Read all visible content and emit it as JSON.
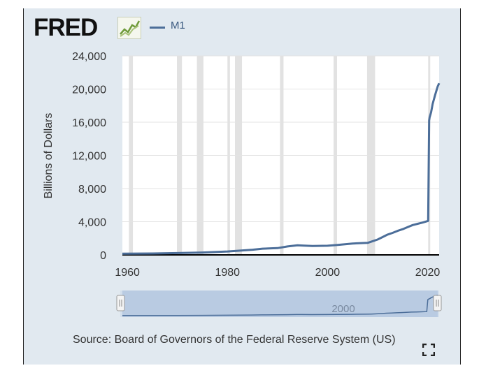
{
  "header": {
    "logo_text": "FRED",
    "logo_icon": "fred-graph-icon",
    "legend_label": "M1"
  },
  "source_text": "Source: Board of Governors of the Federal Reserve System (US)",
  "expand_icon": "expand-icon",
  "colors": {
    "series": "#4c6e99",
    "panel": "#e1e9f0",
    "recession": "#e2e2e2",
    "navigator": "#b9cbe2"
  },
  "navigator": {
    "tick_label": "2000"
  },
  "chart_data": {
    "type": "line",
    "title": "",
    "xlabel": "",
    "ylabel": "Billions of Dollars",
    "xlim": [
      1959,
      2022.3
    ],
    "ylim": [
      0,
      24000
    ],
    "yticks": [
      0,
      4000,
      8000,
      12000,
      16000,
      20000,
      24000
    ],
    "ytick_labels": [
      "0",
      "4,000",
      "8,000",
      "12,000",
      "16,000",
      "20,000",
      "24,000"
    ],
    "xticks": [
      1960,
      1980,
      2000,
      2020
    ],
    "xtick_labels": [
      "1960",
      "1980",
      "2000",
      "2020"
    ],
    "grid": true,
    "recessions": [
      [
        1960.3,
        1961.1
      ],
      [
        1969.9,
        1970.9
      ],
      [
        1973.9,
        1975.2
      ],
      [
        1980.0,
        1980.5
      ],
      [
        1981.5,
        1982.9
      ],
      [
        1990.5,
        1991.2
      ],
      [
        2001.2,
        2001.9
      ],
      [
        2007.9,
        2009.5
      ],
      [
        2020.1,
        2020.3
      ]
    ],
    "series": [
      {
        "name": "M1",
        "x": [
          1959,
          1965,
          1970,
          1975,
          1980,
          1985,
          1987,
          1990,
          1992,
          1994,
          1995,
          1997,
          2000,
          2002,
          2005,
          2008,
          2009,
          2010,
          2011,
          2012,
          2013,
          2014,
          2015,
          2016,
          2017,
          2018,
          2019,
          2020.1,
          2020.3,
          2020.4,
          2020.7,
          2021,
          2021.5,
          2022,
          2022.3
        ],
        "values": [
          140,
          170,
          215,
          290,
          410,
          620,
          750,
          820,
          1020,
          1150,
          1130,
          1080,
          1100,
          1200,
          1370,
          1450,
          1650,
          1850,
          2150,
          2450,
          2650,
          2900,
          3100,
          3350,
          3600,
          3750,
          3900,
          4100,
          16200,
          16600,
          17200,
          18200,
          19300,
          20300,
          20700
        ]
      }
    ]
  }
}
